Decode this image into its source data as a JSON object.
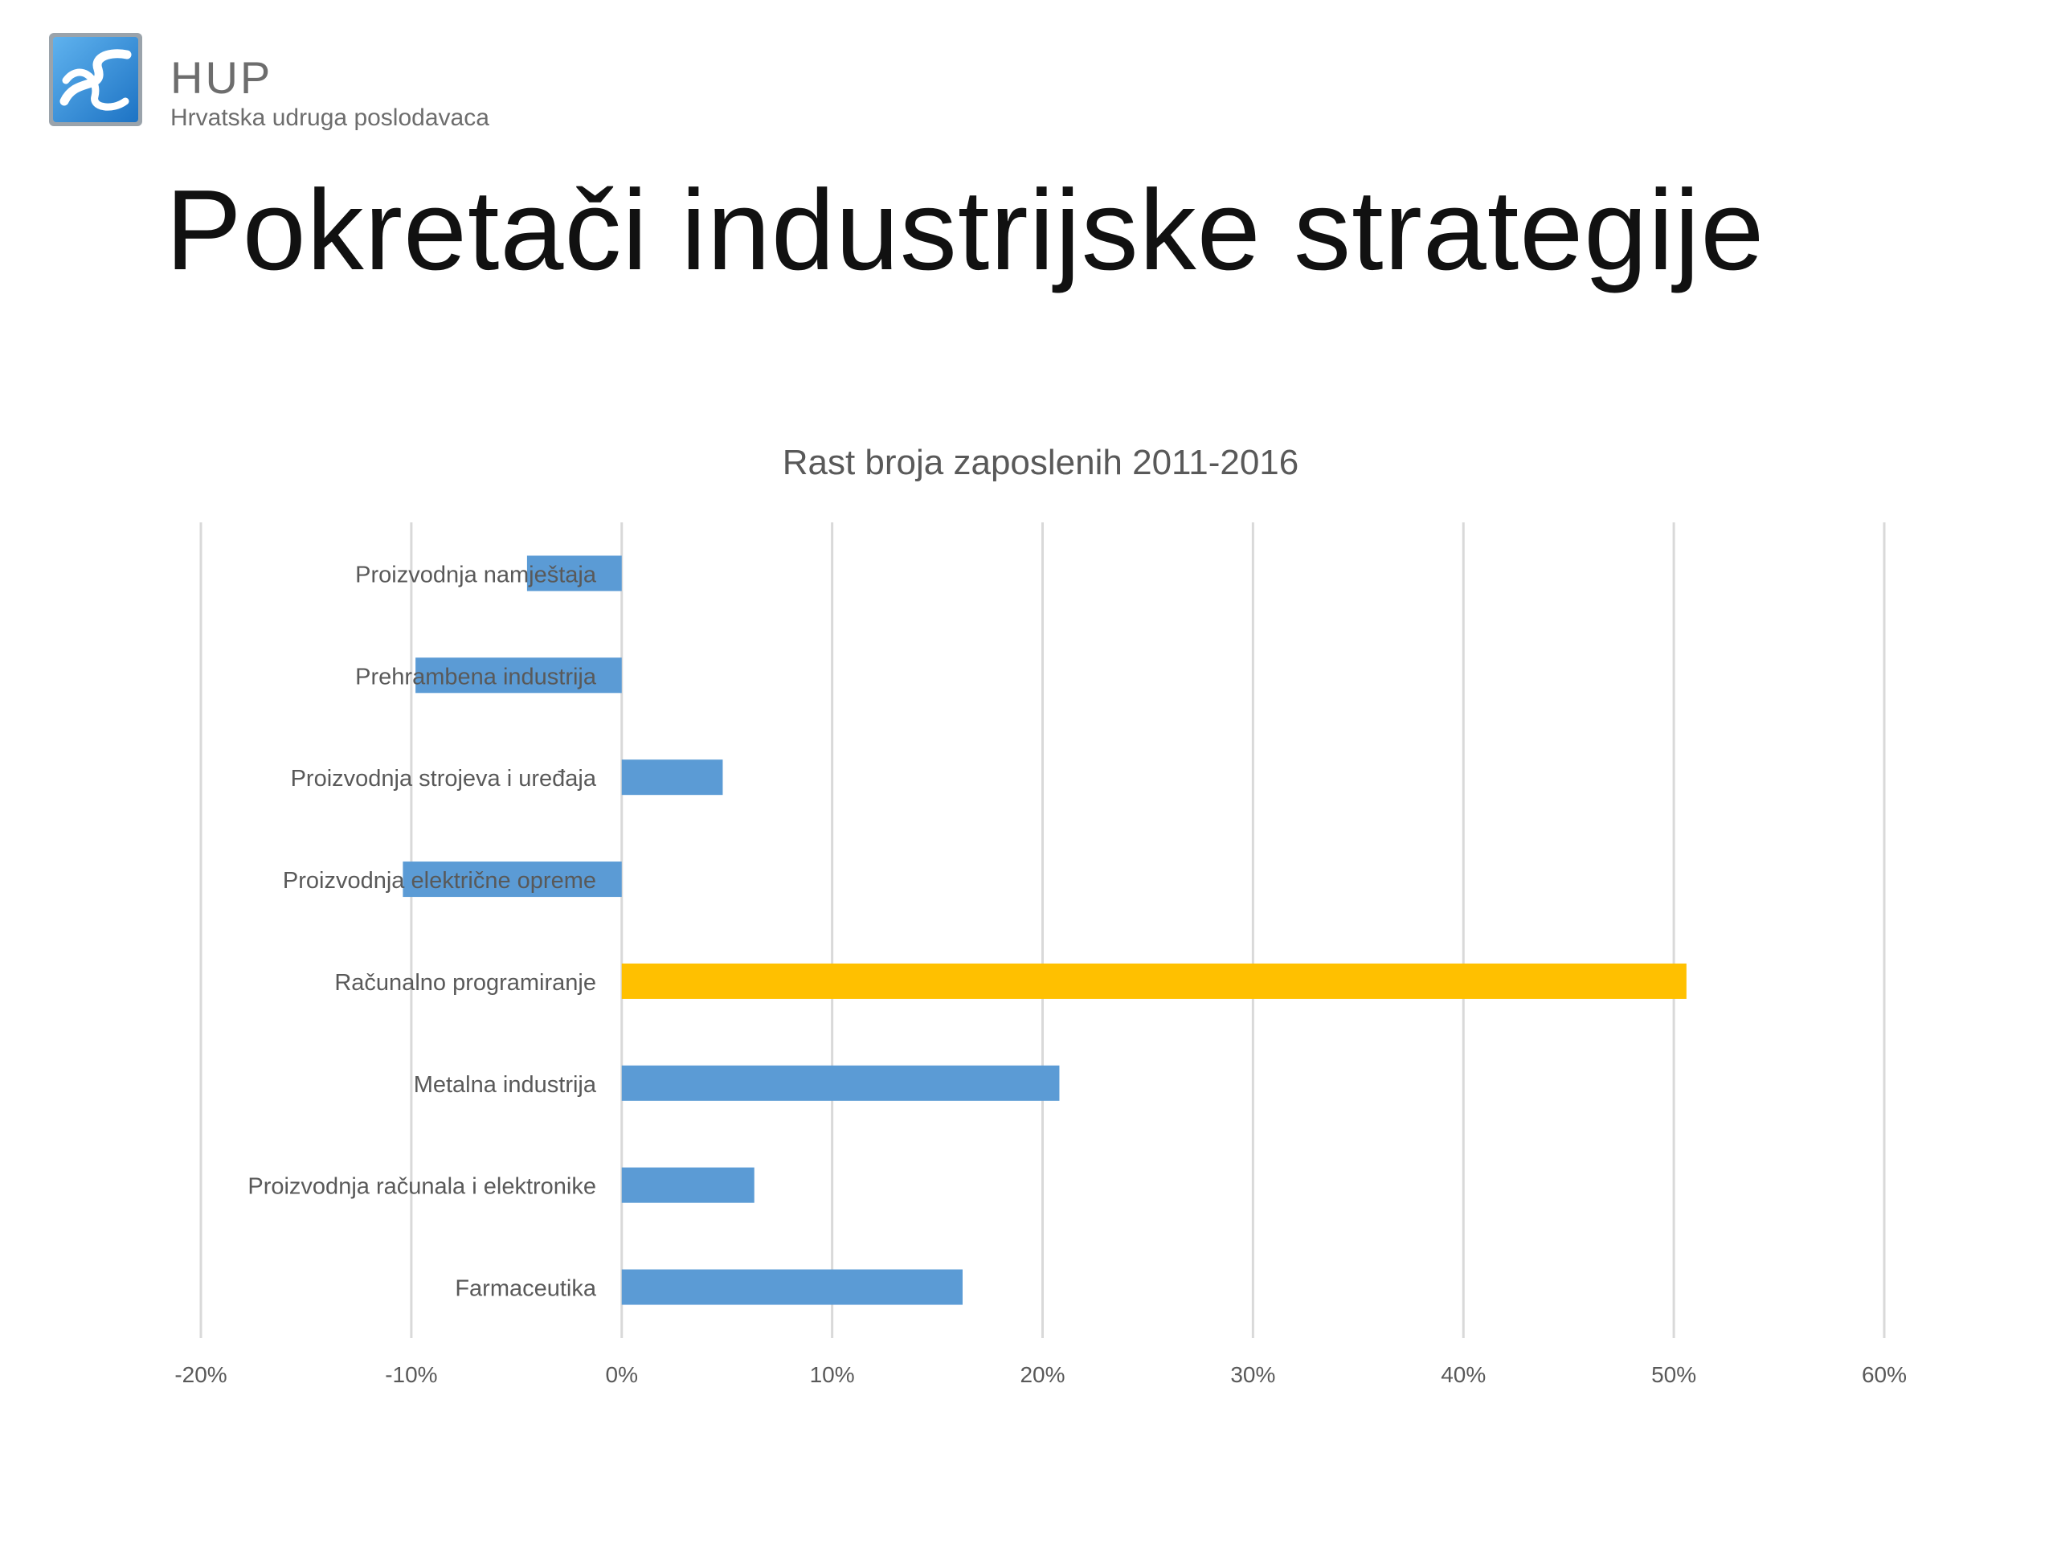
{
  "header": {
    "brand_name": "HUP",
    "brand_sub": "Hrvatska udruga poslodavaca",
    "slide_title": "Pokretači industrijske strategije"
  },
  "colors": {
    "bar_default": "#5b9bd5",
    "bar_highlight": "#ffc000",
    "gridline": "#d9d9d9",
    "axis_text": "#595959",
    "logo_blue": "#2e8fdc"
  },
  "chart_data": {
    "type": "bar",
    "orientation": "horizontal",
    "title": "Rast broja zaposlenih 2011-2016",
    "xlabel": "",
    "ylabel": "",
    "xlim": [
      -0.2,
      0.6
    ],
    "x_ticks": [
      -0.2,
      -0.1,
      0,
      0.1,
      0.2,
      0.3,
      0.4,
      0.5,
      0.6
    ],
    "x_tick_labels": [
      "-20%",
      "-10%",
      "0%",
      "10%",
      "20%",
      "30%",
      "40%",
      "50%",
      "60%"
    ],
    "grid": true,
    "legend": "none",
    "categories": [
      "Proizvodnja namještaja",
      "Prehrambena industrija",
      "Proizvodnja strojeva i uređaja",
      "Proizvodnja električne opreme",
      "Računalno programiranje",
      "Metalna industrija",
      "Proizvodnja računala i elektronike",
      "Farmaceutika"
    ],
    "values": [
      -0.045,
      -0.098,
      0.048,
      -0.104,
      0.506,
      0.208,
      0.063,
      0.162
    ],
    "highlight_index": 4
  }
}
